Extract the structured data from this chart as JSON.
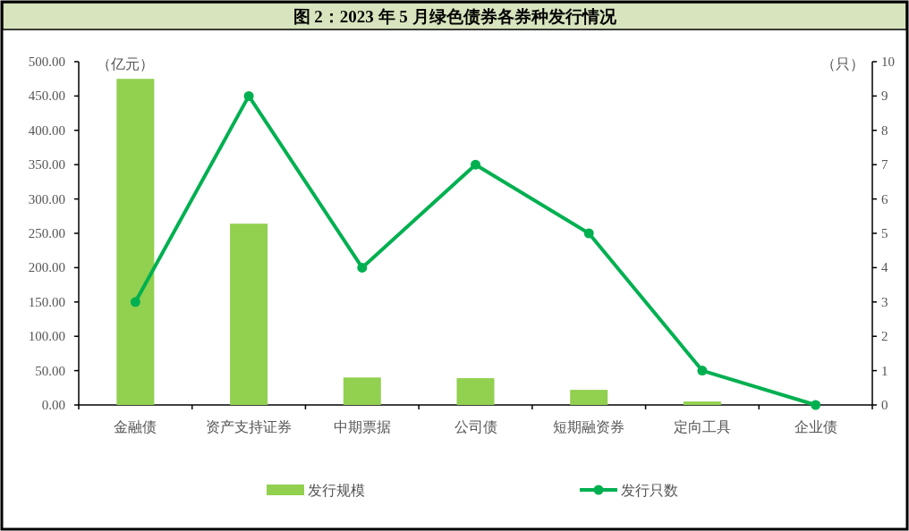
{
  "chart_data": {
    "type": "bar",
    "title": "图 2：2023 年 5 月绿色债券各券种发行情况",
    "categories": [
      "金融债",
      "资产支持证券",
      "中期票据",
      "公司债",
      "短期融资券",
      "定向工具",
      "企业债"
    ],
    "series": [
      {
        "name": "发行规模",
        "color": "#92d050",
        "values": [
          475,
          264,
          40,
          39,
          22,
          5,
          0
        ]
      },
      {
        "name": "发行只数",
        "type": "line",
        "axis": "y2",
        "color": "#00b050",
        "marker": "circle",
        "values": [
          3,
          9,
          4,
          7,
          5,
          1,
          0
        ]
      }
    ],
    "ylabel": "（亿元）",
    "y2label": "（只）",
    "ylim": [
      0,
      500
    ],
    "yticks": [
      {
        "value": 0,
        "label": "0.00"
      },
      {
        "value": 50,
        "label": "50.00"
      },
      {
        "value": 100,
        "label": "100.00"
      },
      {
        "value": 150,
        "label": "150.00"
      },
      {
        "value": 200,
        "label": "200.00"
      },
      {
        "value": 250,
        "label": "250.00"
      },
      {
        "value": 300,
        "label": "300.00"
      },
      {
        "value": 350,
        "label": "350.00"
      },
      {
        "value": 400,
        "label": "400.00"
      },
      {
        "value": 450,
        "label": "450.00"
      },
      {
        "value": 500,
        "label": "500.00"
      }
    ],
    "y2lim": [
      0,
      10
    ],
    "y2ticks": [
      0,
      1,
      2,
      3,
      4,
      5,
      6,
      7,
      8,
      9,
      10
    ],
    "grid": false,
    "legend": "bottom"
  }
}
